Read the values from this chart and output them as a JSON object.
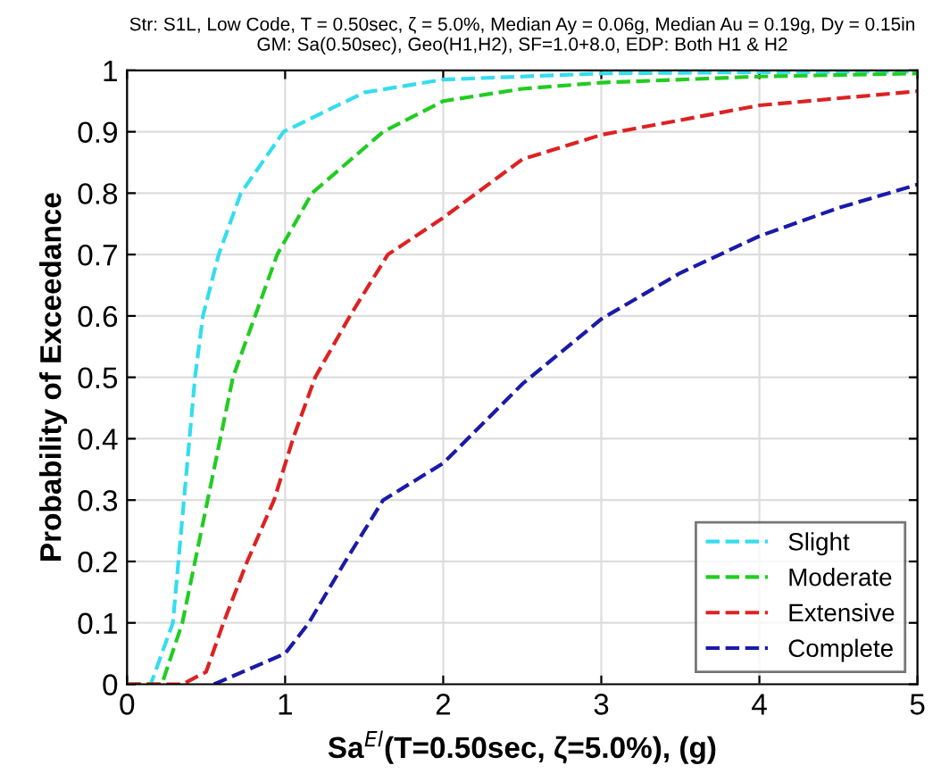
{
  "chart_data": {
    "type": "line",
    "title": "Str: S1L, Low Code, T = 0.50sec, ζ = 5.0%, Median Ay = 0.06g, Median Au = 0.19g, Dy = 0.15in\nGM: Sa(0.50sec), Geo(H1,H2), SF=1.0+8.0, EDP: Both H1 & H2",
    "xlabel": "Sa$^{El}$(T=0.50sec, ζ=5.0%), (g)",
    "ylabel": "Probability of Exceedance",
    "xlim": [
      0,
      5
    ],
    "ylim": [
      0,
      1
    ],
    "xticks": [
      0,
      1,
      2,
      3,
      4,
      5
    ],
    "yticks": [
      0,
      0.1,
      0.2,
      0.3,
      0.4,
      0.5,
      0.6,
      0.7,
      0.8,
      0.9,
      1
    ],
    "grid": true,
    "legend": "bottom right",
    "line_style": "dashed",
    "marker": "none",
    "series": [
      {
        "name": "Slight",
        "color": "#33ddee",
        "x": [
          0,
          0.15,
          0.29,
          0.36,
          0.43,
          0.48,
          0.58,
          0.72,
          0.99,
          1.5,
          2,
          3,
          4,
          5
        ],
        "values": [
          0,
          0,
          0.1,
          0.3,
          0.5,
          0.6,
          0.7,
          0.8,
          0.9,
          0.964,
          0.985,
          0.995,
          0.997,
          0.998
        ]
      },
      {
        "name": "Moderate",
        "color": "#22cc22",
        "x": [
          0,
          0.22,
          0.35,
          0.51,
          0.67,
          0.95,
          1.17,
          1.62,
          2,
          2.5,
          3,
          4,
          5
        ],
        "values": [
          0,
          0,
          0.1,
          0.3,
          0.5,
          0.7,
          0.8,
          0.9,
          0.95,
          0.97,
          0.98,
          0.99,
          0.995
        ]
      },
      {
        "name": "Extensive",
        "color": "#dd2222",
        "x": [
          0,
          0.35,
          0.5,
          0.61,
          0.76,
          0.93,
          1.05,
          1.19,
          1.41,
          1.65,
          2,
          2.5,
          3,
          4,
          5
        ],
        "values": [
          0,
          0,
          0.02,
          0.1,
          0.2,
          0.3,
          0.4,
          0.5,
          0.6,
          0.7,
          0.76,
          0.855,
          0.895,
          0.943,
          0.966
        ]
      },
      {
        "name": "Complete",
        "color": "#1a1aaa",
        "x": [
          0.55,
          1,
          1.15,
          1.38,
          1.62,
          2,
          2.5,
          3,
          3.5,
          4,
          4.5,
          5
        ],
        "values": [
          0,
          0.05,
          0.1,
          0.2,
          0.3,
          0.36,
          0.489,
          0.595,
          0.67,
          0.73,
          0.776,
          0.814
        ]
      }
    ]
  }
}
